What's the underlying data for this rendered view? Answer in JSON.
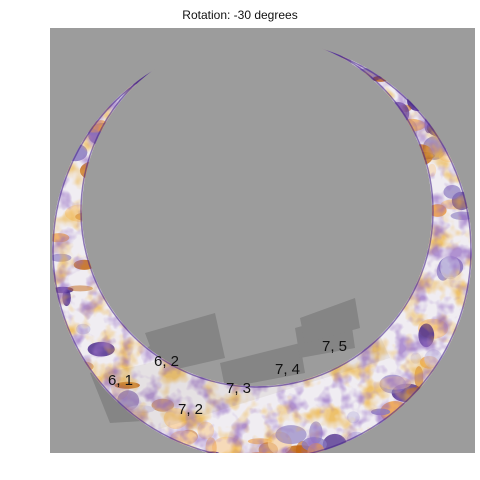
{
  "title": "Rotation: -30 degrees",
  "tile_labels": [
    "6, 1",
    "6, 2",
    "7, 2",
    "7, 3",
    "7, 4",
    "7, 5"
  ],
  "colors": {
    "background": "#9c9c9c",
    "tile_shadow": "#808080",
    "ring_base": "#f0edf2",
    "orange_dark": "#c0600a",
    "orange_mid": "#ee9a3c",
    "orange_light": "#f8cf9a",
    "purple_dark": "#4a2a8a",
    "purple_mid": "#8a7ac0",
    "purple_light": "#c9c3e2"
  }
}
